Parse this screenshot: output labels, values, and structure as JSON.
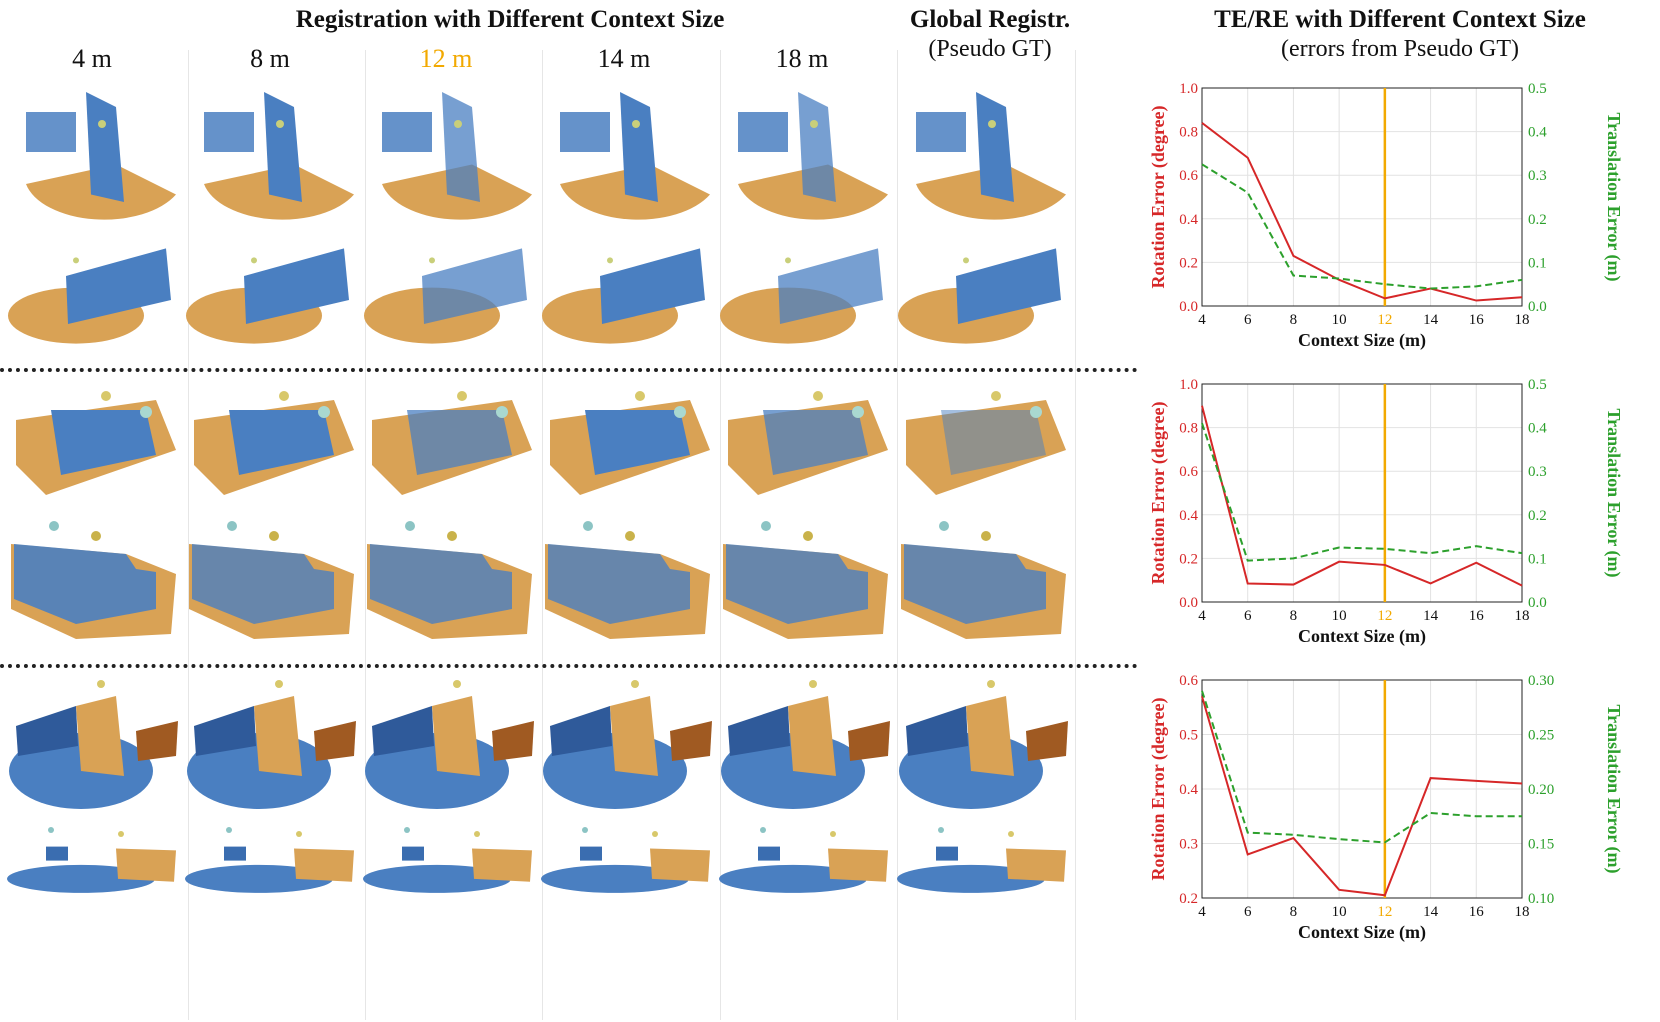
{
  "header": {
    "left_title": "Registration with Different Context Size",
    "global_title": "Global Registr.",
    "global_sub": "(Pseudo GT)",
    "right_title": "TE/RE with Different Context Size",
    "right_sub": "(errors from Pseudo GT)"
  },
  "columns": [
    "4 m",
    "8 m",
    "12 m",
    "14 m",
    "18 m"
  ],
  "colors": {
    "highlight": "#f2a900",
    "rotation": "#d62728",
    "translation": "#2ca02c",
    "blue": "#4a7fc1",
    "orange": "#d9a255"
  },
  "chart_data": [
    {
      "type": "line",
      "x": [
        4,
        6,
        8,
        10,
        12,
        14,
        16,
        18
      ],
      "series": [
        {
          "values": [
            0.84,
            0.68,
            0.23,
            0.12,
            0.035,
            0.08,
            0.025,
            0.04
          ],
          "axis": "left",
          "color": "#d62728",
          "style": "solid"
        },
        {
          "values": [
            0.325,
            0.26,
            0.07,
            0.063,
            0.05,
            0.04,
            0.045,
            0.06
          ],
          "axis": "right",
          "color": "#2ca02c",
          "style": "dashed"
        }
      ],
      "xlabel": "Context Size (m)",
      "ylabel": "Rotation Error (degree)",
      "y2label": "Translation Error (m)",
      "xlim": [
        4,
        18
      ],
      "ylim": [
        0,
        1.0
      ],
      "y2lim": [
        0,
        0.5
      ],
      "yticks": [
        "0.0",
        "0.2",
        "0.4",
        "0.6",
        "0.8",
        "1.0"
      ],
      "y2ticks": [
        "0.0",
        "0.1",
        "0.2",
        "0.3",
        "0.4",
        "0.5"
      ],
      "xticks": [
        "4",
        "6",
        "8",
        "10",
        "12",
        "14",
        "16",
        "18"
      ],
      "vline": 12,
      "grid": true
    },
    {
      "type": "line",
      "x": [
        4,
        6,
        8,
        10,
        12,
        14,
        16,
        18
      ],
      "series": [
        {
          "values": [
            0.9,
            0.085,
            0.08,
            0.185,
            0.17,
            0.085,
            0.18,
            0.075
          ],
          "axis": "left",
          "color": "#d62728",
          "style": "solid"
        },
        {
          "values": [
            0.41,
            0.095,
            0.1,
            0.125,
            0.122,
            0.112,
            0.128,
            0.112
          ],
          "axis": "right",
          "color": "#2ca02c",
          "style": "dashed"
        }
      ],
      "xlabel": "Context Size (m)",
      "ylabel": "Rotation Error (degree)",
      "y2label": "Translation Error (m)",
      "xlim": [
        4,
        18
      ],
      "ylim": [
        0,
        1.0
      ],
      "y2lim": [
        0,
        0.5
      ],
      "yticks": [
        "0.0",
        "0.2",
        "0.4",
        "0.6",
        "0.8",
        "1.0"
      ],
      "y2ticks": [
        "0.0",
        "0.1",
        "0.2",
        "0.3",
        "0.4",
        "0.5"
      ],
      "xticks": [
        "4",
        "6",
        "8",
        "10",
        "12",
        "14",
        "16",
        "18"
      ],
      "vline": 12,
      "grid": true
    },
    {
      "type": "line",
      "x": [
        4,
        6,
        8,
        10,
        12,
        14,
        16,
        18
      ],
      "series": [
        {
          "values": [
            0.57,
            0.28,
            0.31,
            0.215,
            0.205,
            0.42,
            0.415,
            0.41
          ],
          "axis": "left",
          "color": "#d62728",
          "style": "solid"
        },
        {
          "values": [
            0.29,
            0.16,
            0.158,
            0.154,
            0.151,
            0.178,
            0.175,
            0.175
          ],
          "axis": "right",
          "color": "#2ca02c",
          "style": "dashed"
        }
      ],
      "xlabel": "Context Size (m)",
      "ylabel": "Rotation Error (degree)",
      "y2label": "Translation Error (m)",
      "xlim": [
        4,
        18
      ],
      "ylim": [
        0.2,
        0.6
      ],
      "y2lim": [
        0.1,
        0.3
      ],
      "yticks": [
        "0.2",
        "0.3",
        "0.4",
        "0.5",
        "0.6"
      ],
      "y2ticks": [
        "0.10",
        "0.15",
        "0.20",
        "0.25",
        "0.30"
      ],
      "xticks": [
        "4",
        "6",
        "8",
        "10",
        "12",
        "14",
        "16",
        "18"
      ],
      "vline": 12,
      "grid": true
    }
  ]
}
